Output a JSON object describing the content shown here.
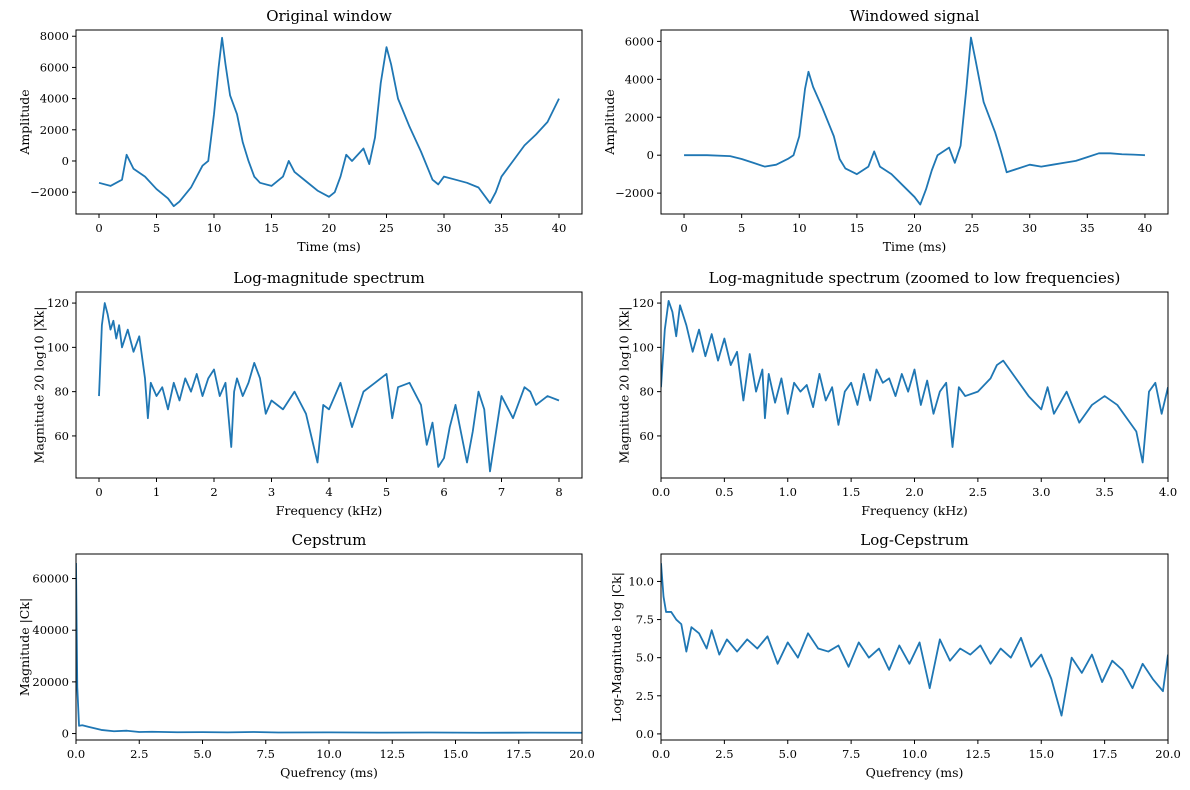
{
  "colors": {
    "line": "#1f77b4",
    "axis": "#000000",
    "background": "#ffffff"
  },
  "chart_data": [
    {
      "type": "line",
      "title": "Original window",
      "xlabel": "Time (ms)",
      "ylabel": "Amplitude",
      "xlim": [
        -2,
        42
      ],
      "ylim": [
        -3400,
        8400
      ],
      "xticks": [
        0,
        5,
        10,
        15,
        20,
        25,
        30,
        35,
        40
      ],
      "xtick_labels": [
        "0",
        "5",
        "10",
        "15",
        "20",
        "25",
        "30",
        "35",
        "40"
      ],
      "yticks": [
        -2000,
        0,
        2000,
        4000,
        6000,
        8000
      ],
      "ytick_labels": [
        "−2000",
        "0",
        "2000",
        "4000",
        "6000",
        "8000"
      ],
      "grid": false,
      "series": [
        {
          "x": [
            0,
            1,
            2,
            2.4,
            3,
            4,
            5,
            6,
            6.5,
            7,
            8,
            9,
            9.5,
            10,
            10.4,
            10.7,
            11,
            11.4,
            12,
            12.5,
            13,
            13.5,
            14,
            15,
            16,
            16.5,
            17,
            18,
            19,
            20,
            20.5,
            21,
            21.5,
            22,
            23,
            23.5,
            24,
            24.5,
            25,
            25.4,
            26,
            27,
            28,
            29,
            29.5,
            30,
            31,
            32,
            33,
            34,
            34.5,
            35,
            35.5,
            36,
            37,
            38,
            39,
            40
          ],
          "y": [
            -1400,
            -1600,
            -1200,
            400,
            -500,
            -1000,
            -1800,
            -2400,
            -2900,
            -2600,
            -1700,
            -300,
            0,
            3000,
            6000,
            7900,
            6200,
            4200,
            3000,
            1200,
            0,
            -1000,
            -1400,
            -1600,
            -1000,
            0,
            -700,
            -1300,
            -1900,
            -2300,
            -2000,
            -1000,
            400,
            0,
            800,
            -200,
            1500,
            5000,
            7300,
            6200,
            4000,
            2200,
            600,
            -1200,
            -1500,
            -1000,
            -1200,
            -1400,
            -1700,
            -2700,
            -2000,
            -1000,
            -500,
            0,
            1000,
            1700,
            2500,
            4000
          ]
        }
      ]
    },
    {
      "type": "line",
      "title": "Windowed signal",
      "xlabel": "Time (ms)",
      "ylabel": "Amplitude",
      "xlim": [
        -2,
        42
      ],
      "ylim": [
        -3100,
        6600
      ],
      "xticks": [
        0,
        5,
        10,
        15,
        20,
        25,
        30,
        35,
        40
      ],
      "xtick_labels": [
        "0",
        "5",
        "10",
        "15",
        "20",
        "25",
        "30",
        "35",
        "40"
      ],
      "yticks": [
        -2000,
        0,
        2000,
        4000,
        6000
      ],
      "ytick_labels": [
        "−2000",
        "0",
        "2000",
        "4000",
        "6000"
      ],
      "grid": false,
      "series": [
        {
          "x": [
            0,
            2,
            4,
            5,
            6,
            7,
            8,
            9,
            9.5,
            10,
            10.5,
            10.8,
            11.2,
            12,
            13,
            13.5,
            14,
            15,
            16,
            16.5,
            17,
            18,
            19,
            20,
            20.5,
            21,
            21.5,
            22,
            23,
            23.5,
            24,
            24.5,
            24.9,
            25.3,
            26,
            27,
            27.5,
            28,
            29,
            30,
            31,
            32,
            33,
            34,
            35,
            36,
            37,
            38,
            39,
            40
          ],
          "y": [
            0,
            0,
            -50,
            -200,
            -400,
            -600,
            -500,
            -200,
            0,
            1000,
            3500,
            4400,
            3600,
            2500,
            1000,
            -200,
            -700,
            -1000,
            -600,
            200,
            -600,
            -1000,
            -1600,
            -2200,
            -2600,
            -1800,
            -800,
            0,
            400,
            -400,
            500,
            3500,
            6200,
            5000,
            2800,
            1200,
            200,
            -900,
            -700,
            -500,
            -600,
            -500,
            -400,
            -300,
            -100,
            100,
            100,
            50,
            30,
            0
          ]
        }
      ]
    },
    {
      "type": "line",
      "title": "Log-magnitude spectrum",
      "xlabel": "Frequency (kHz)",
      "ylabel": "Magnitude 20 log10 |Xk|",
      "xlim": [
        -0.4,
        8.4
      ],
      "ylim": [
        41,
        125
      ],
      "xticks": [
        0,
        1,
        2,
        3,
        4,
        5,
        6,
        7,
        8
      ],
      "xtick_labels": [
        "0",
        "1",
        "2",
        "3",
        "4",
        "5",
        "6",
        "7",
        "8"
      ],
      "yticks": [
        60,
        80,
        100,
        120
      ],
      "ytick_labels": [
        "60",
        "80",
        "100",
        "120"
      ],
      "grid": false,
      "series": [
        {
          "x": [
            0,
            0.05,
            0.1,
            0.15,
            0.2,
            0.25,
            0.3,
            0.35,
            0.4,
            0.5,
            0.6,
            0.7,
            0.8,
            0.85,
            0.9,
            1.0,
            1.1,
            1.2,
            1.3,
            1.4,
            1.5,
            1.6,
            1.7,
            1.8,
            1.9,
            2.0,
            2.1,
            2.2,
            2.3,
            2.35,
            2.4,
            2.5,
            2.6,
            2.7,
            2.8,
            2.9,
            3.0,
            3.2,
            3.4,
            3.6,
            3.8,
            3.9,
            4.0,
            4.2,
            4.4,
            4.6,
            4.8,
            5.0,
            5.1,
            5.2,
            5.4,
            5.6,
            5.7,
            5.8,
            5.9,
            6.0,
            6.1,
            6.2,
            6.4,
            6.5,
            6.6,
            6.7,
            6.8,
            7.0,
            7.2,
            7.4,
            7.5,
            7.6,
            7.8,
            8.0
          ],
          "y": [
            78,
            110,
            120,
            115,
            108,
            112,
            104,
            110,
            100,
            108,
            98,
            105,
            86,
            68,
            84,
            78,
            82,
            72,
            84,
            76,
            86,
            80,
            88,
            78,
            86,
            90,
            78,
            84,
            55,
            80,
            86,
            78,
            84,
            93,
            86,
            70,
            76,
            72,
            80,
            70,
            48,
            74,
            72,
            84,
            64,
            80,
            84,
            88,
            68,
            82,
            84,
            74,
            56,
            66,
            46,
            50,
            64,
            74,
            48,
            62,
            80,
            72,
            44,
            78,
            68,
            82,
            80,
            74,
            78,
            76
          ]
        }
      ]
    },
    {
      "type": "line",
      "title": "Log-magnitude spectrum (zoomed to low frequencies)",
      "xlabel": "Frequency (kHz)",
      "ylabel": "Magnitude 20 log10 |Xk|",
      "xlim": [
        0,
        4
      ],
      "ylim": [
        41,
        125
      ],
      "xticks": [
        0,
        0.5,
        1.0,
        1.5,
        2.0,
        2.5,
        3.0,
        3.5,
        4.0
      ],
      "xtick_labels": [
        "0.0",
        "0.5",
        "1.0",
        "1.5",
        "2.0",
        "2.5",
        "3.0",
        "3.5",
        "4.0"
      ],
      "yticks": [
        60,
        80,
        100,
        120
      ],
      "ytick_labels": [
        "60",
        "80",
        "100",
        "120"
      ],
      "grid": false,
      "series": [
        {
          "x": [
            0,
            0.03,
            0.06,
            0.09,
            0.12,
            0.15,
            0.2,
            0.25,
            0.3,
            0.35,
            0.4,
            0.45,
            0.5,
            0.55,
            0.6,
            0.65,
            0.7,
            0.75,
            0.8,
            0.82,
            0.85,
            0.9,
            0.95,
            1.0,
            1.05,
            1.1,
            1.15,
            1.2,
            1.25,
            1.3,
            1.35,
            1.4,
            1.45,
            1.5,
            1.55,
            1.6,
            1.65,
            1.7,
            1.75,
            1.8,
            1.85,
            1.9,
            1.95,
            2.0,
            2.05,
            2.1,
            2.15,
            2.2,
            2.25,
            2.3,
            2.35,
            2.4,
            2.5,
            2.6,
            2.65,
            2.7,
            2.8,
            2.9,
            3.0,
            3.05,
            3.1,
            3.2,
            3.3,
            3.4,
            3.5,
            3.6,
            3.7,
            3.75,
            3.8,
            3.85,
            3.9,
            3.95,
            4.0
          ],
          "y": [
            82,
            108,
            121,
            116,
            105,
            119,
            110,
            98,
            108,
            96,
            106,
            94,
            104,
            92,
            98,
            76,
            97,
            80,
            90,
            68,
            88,
            75,
            86,
            70,
            84,
            80,
            83,
            73,
            88,
            76,
            82,
            65,
            80,
            84,
            74,
            88,
            76,
            90,
            84,
            86,
            78,
            88,
            80,
            90,
            74,
            85,
            70,
            80,
            84,
            55,
            82,
            78,
            80,
            86,
            92,
            94,
            86,
            78,
            72,
            82,
            70,
            80,
            66,
            74,
            78,
            74,
            66,
            62,
            48,
            80,
            84,
            70,
            82
          ]
        }
      ]
    },
    {
      "type": "line",
      "title": "Cepstrum",
      "xlabel": "Quefrency (ms)",
      "ylabel": "Magnitude |Ck|",
      "xlim": [
        0,
        20
      ],
      "ylim": [
        -2500,
        69500
      ],
      "xticks": [
        0,
        2.5,
        5,
        7.5,
        10,
        12.5,
        15,
        17.5,
        20
      ],
      "xtick_labels": [
        "0.0",
        "2.5",
        "5.0",
        "7.5",
        "10.0",
        "12.5",
        "15.0",
        "17.5",
        "20.0"
      ],
      "yticks": [
        0,
        20000,
        40000,
        60000
      ],
      "ytick_labels": [
        "0",
        "20000",
        "40000",
        "60000"
      ],
      "grid": false,
      "series": [
        {
          "x": [
            0,
            0.05,
            0.12,
            0.25,
            0.5,
            0.75,
            1.0,
            1.5,
            2.0,
            2.5,
            3.0,
            4.0,
            5.0,
            6.0,
            7.0,
            8.0,
            10.0,
            12.0,
            14.0,
            16.0,
            18.0,
            20.0
          ],
          "y": [
            66000,
            18000,
            3000,
            3200,
            2600,
            2000,
            1400,
            900,
            1100,
            600,
            700,
            500,
            550,
            450,
            600,
            400,
            450,
            350,
            400,
            300,
            350,
            300
          ]
        }
      ]
    },
    {
      "type": "line",
      "title": "Log-Cepstrum",
      "xlabel": "Quefrency (ms)",
      "ylabel": "Log-Magnitude log |Ck|",
      "xlim": [
        0,
        20
      ],
      "ylim": [
        -0.4,
        11.8
      ],
      "xticks": [
        0,
        2.5,
        5,
        7.5,
        10,
        12.5,
        15,
        17.5,
        20
      ],
      "xtick_labels": [
        "0.0",
        "2.5",
        "5.0",
        "7.5",
        "10.0",
        "12.5",
        "15.0",
        "17.5",
        "20.0"
      ],
      "yticks": [
        0,
        2.5,
        5.0,
        7.5,
        10.0
      ],
      "ytick_labels": [
        "0.0",
        "2.5",
        "5.0",
        "7.5",
        "10.0"
      ],
      "grid": false,
      "series": [
        {
          "x": [
            0,
            0.1,
            0.2,
            0.4,
            0.6,
            0.8,
            1.0,
            1.2,
            1.5,
            1.8,
            2.0,
            2.3,
            2.6,
            3.0,
            3.4,
            3.8,
            4.2,
            4.6,
            5.0,
            5.4,
            5.8,
            6.2,
            6.6,
            7.0,
            7.4,
            7.8,
            8.2,
            8.6,
            9.0,
            9.4,
            9.8,
            10.2,
            10.6,
            11.0,
            11.4,
            11.8,
            12.2,
            12.6,
            13.0,
            13.4,
            13.8,
            14.2,
            14.6,
            15.0,
            15.4,
            15.8,
            16.2,
            16.6,
            17.0,
            17.4,
            17.8,
            18.2,
            18.6,
            19.0,
            19.4,
            19.8,
            20.0
          ],
          "y": [
            11.2,
            9.0,
            8.0,
            8.0,
            7.5,
            7.2,
            5.4,
            7.0,
            6.6,
            5.6,
            6.8,
            5.2,
            6.2,
            5.4,
            6.2,
            5.6,
            6.4,
            4.6,
            6.0,
            5.0,
            6.6,
            5.6,
            5.4,
            5.8,
            4.4,
            6.0,
            5.0,
            5.6,
            4.2,
            5.8,
            4.6,
            6.0,
            3.0,
            6.2,
            4.8,
            5.6,
            5.2,
            5.8,
            4.6,
            5.6,
            5.0,
            6.3,
            4.4,
            5.2,
            3.6,
            1.2,
            5.0,
            4.0,
            5.2,
            3.4,
            4.8,
            4.2,
            3.0,
            4.6,
            3.6,
            2.8,
            5.2
          ]
        }
      ]
    }
  ]
}
